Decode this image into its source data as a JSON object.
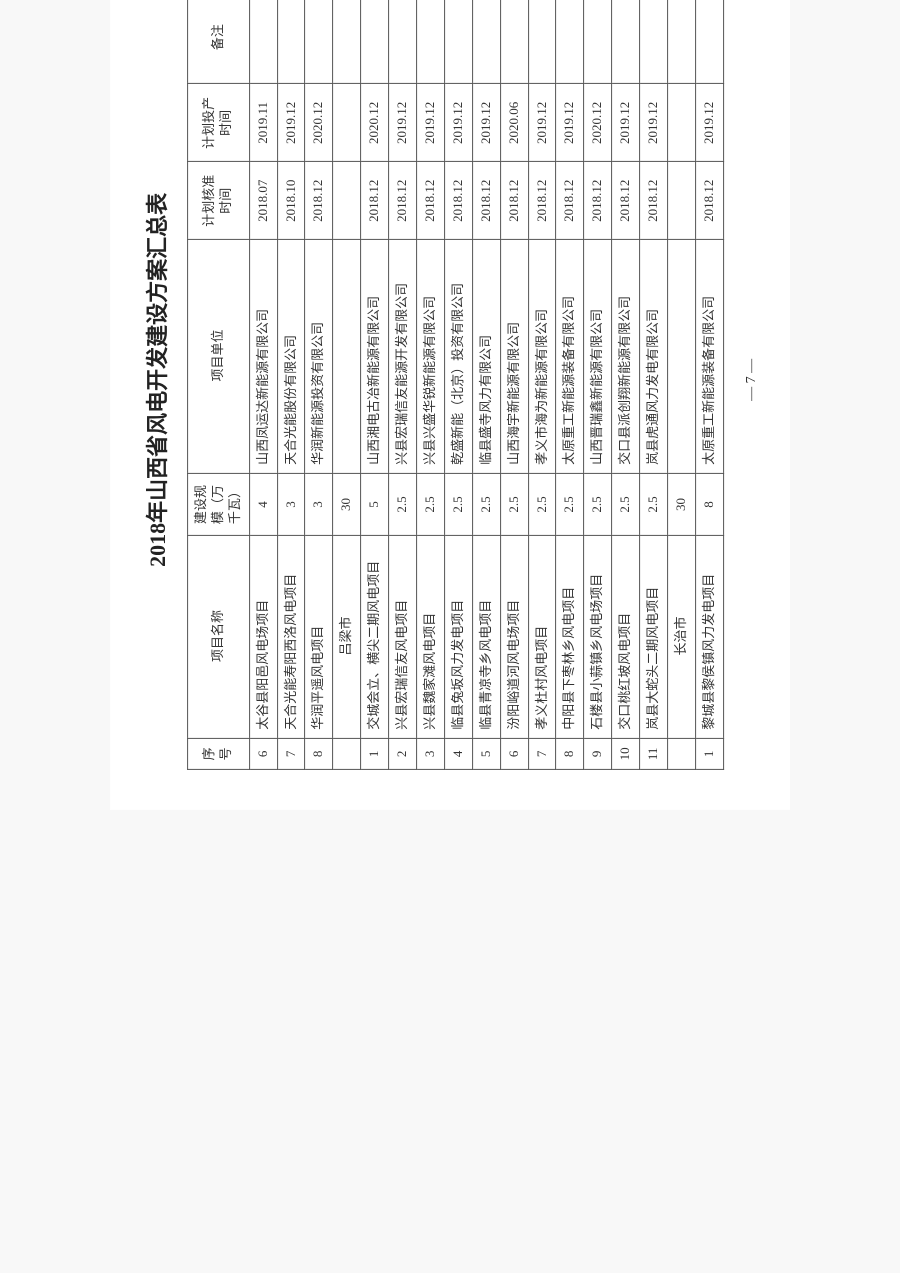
{
  "title": "2018年山西省风电开发建设方案汇总表",
  "headers": {
    "seq": "序号",
    "name": "项目名称",
    "scale": "建设规模（万千瓦）",
    "unit": "项目单位",
    "approve": "计划核准时间",
    "prod": "计划投产时间",
    "remark": "备注"
  },
  "rows": [
    {
      "seq": "6",
      "name": "太谷县阳邑风电场项目",
      "scale": "4",
      "unit": "山西凤运达新能源有限公司",
      "approve": "2018.07",
      "prod": "2019.11",
      "remark": ""
    },
    {
      "seq": "7",
      "name": "天合光能寿阳西洛风电项目",
      "scale": "3",
      "unit": "天合光能股份有限公司",
      "approve": "2018.10",
      "prod": "2019.12",
      "remark": ""
    },
    {
      "seq": "8",
      "name": "华润平遥风电项目",
      "scale": "3",
      "unit": "华润新能源投资有限公司",
      "approve": "2018.12",
      "prod": "2020.12",
      "remark": ""
    },
    {
      "seq": "",
      "name": "吕梁市",
      "scale": "30",
      "unit": "",
      "approve": "",
      "prod": "",
      "remark": "",
      "subtotal": true
    },
    {
      "seq": "1",
      "name": "交城会立、横尖二期风电项目",
      "scale": "5",
      "unit": "山西湘电古冶新能源有限公司",
      "approve": "2018.12",
      "prod": "2020.12",
      "remark": ""
    },
    {
      "seq": "2",
      "name": "兴县宏瑞信友风电项目",
      "scale": "2.5",
      "unit": "兴县宏瑞信友能源开发有限公司",
      "approve": "2018.12",
      "prod": "2019.12",
      "remark": ""
    },
    {
      "seq": "3",
      "name": "兴县魏家滩风电项目",
      "scale": "2.5",
      "unit": "兴县兴盛华锐新能源有限公司",
      "approve": "2018.12",
      "prod": "2019.12",
      "remark": ""
    },
    {
      "seq": "4",
      "name": "临县兔坂风力发电项目",
      "scale": "2.5",
      "unit": "乾盛新能（北京）投资有限公司",
      "approve": "2018.12",
      "prod": "2019.12",
      "remark": ""
    },
    {
      "seq": "5",
      "name": "临县青凉寺乡风电项目",
      "scale": "2.5",
      "unit": "临县盛寺风力有限公司",
      "approve": "2018.12",
      "prod": "2019.12",
      "remark": ""
    },
    {
      "seq": "6",
      "name": "汾阳峪道河风电场项目",
      "scale": "2.5",
      "unit": "山西海宇新能源有限公司",
      "approve": "2018.12",
      "prod": "2020.06",
      "remark": ""
    },
    {
      "seq": "7",
      "name": "孝义杜村风电项目",
      "scale": "2.5",
      "unit": "孝义市海为新能源有限公司",
      "approve": "2018.12",
      "prod": "2019.12",
      "remark": ""
    },
    {
      "seq": "8",
      "name": "中阳县下枣林乡风电项目",
      "scale": "2.5",
      "unit": "太原重工新能源装备有限公司",
      "approve": "2018.12",
      "prod": "2019.12",
      "remark": ""
    },
    {
      "seq": "9",
      "name": "石楼县小蒜镇乡风电场项目",
      "scale": "2.5",
      "unit": "山西晋瑞鑫新能源有限公司",
      "approve": "2018.12",
      "prod": "2020.12",
      "remark": ""
    },
    {
      "seq": "10",
      "name": "交口桃红坡风电项目",
      "scale": "2.5",
      "unit": "交口县派创翔新能源有限公司",
      "approve": "2018.12",
      "prod": "2019.12",
      "remark": ""
    },
    {
      "seq": "11",
      "name": "岚县大蛇头二期风电项目",
      "scale": "2.5",
      "unit": "岚县虎通风力发电有限公司",
      "approve": "2018.12",
      "prod": "2019.12",
      "remark": ""
    },
    {
      "seq": "",
      "name": "长治市",
      "scale": "30",
      "unit": "",
      "approve": "",
      "prod": "",
      "remark": "",
      "subtotal": true
    },
    {
      "seq": "1",
      "name": "黎城县黎侯镇风力发电项目",
      "scale": "8",
      "unit": "太原重工新能源装备有限公司",
      "approve": "2018.12",
      "prod": "2019.12",
      "remark": ""
    }
  ],
  "pageNumber": "— 7 —"
}
